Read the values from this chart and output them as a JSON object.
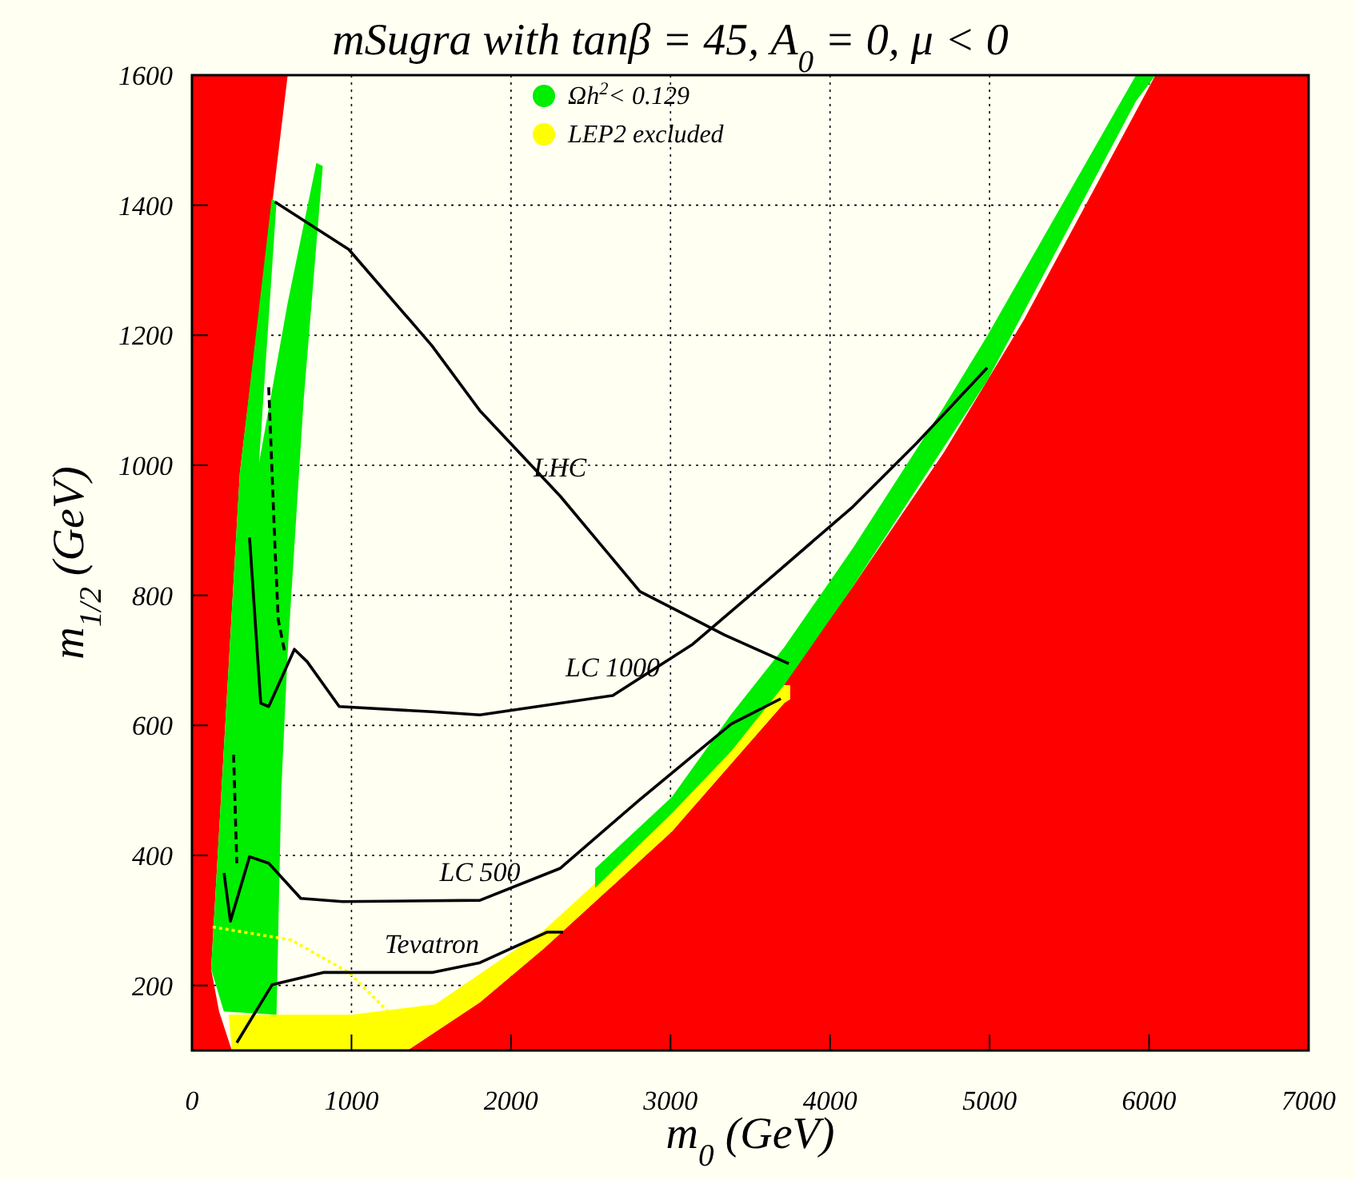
{
  "chart_data": {
    "type": "area",
    "title": "mSugra with tanβ = 45, A$_{0}$ = 0, μ < 0",
    "xlabel": "m$_{0}$ (GeV)",
    "ylabel": "m$_{1/2}$ (GeV)",
    "xlim": [
      0,
      7000
    ],
    "ylim": [
      100,
      1600
    ],
    "xticks": [
      0,
      1000,
      2000,
      3000,
      4000,
      5000,
      6000,
      7000
    ],
    "yticks": [
      200,
      400,
      600,
      800,
      1000,
      1200,
      1400,
      1600
    ],
    "grid": true,
    "legend": "top",
    "series": [
      {
        "color": "#ff0000",
        "x": [
          0,
          0,
          600,
          300,
          120,
          170,
          250
        ],
        "values": [
          100,
          1600,
          1600,
          988,
          225,
          160,
          100
        ]
      },
      {
        "color": "#ff0000",
        "x": [
          1350,
          1805,
          2207,
          3009,
          3711,
          3712,
          4142,
          4714,
          5216,
          6040,
          7000,
          7000
        ],
        "values": [
          100,
          174,
          257,
          437,
          634,
          666,
          813,
          1020,
          1224,
          1600,
          1600,
          100
        ]
      },
      {
        "name": "LEP2 excluded",
        "color": "#ffff00",
        "x": [
          230,
          1000,
          1525,
          2207,
          3009,
          3711,
          3750,
          3750,
          3711,
          3009,
          2207,
          1805,
          1350,
          250,
          230
        ],
        "values": [
          155,
          155,
          171,
          285,
          465,
          662,
          662,
          640,
          634,
          437,
          257,
          174,
          100,
          100,
          155
        ]
      },
      {
        "name": "Ωh$^{2}$< 0.129",
        "color": "#00ee00",
        "x": [
          120,
          200,
          530,
          560,
          600,
          700,
          820,
          780,
          600,
          420,
          530,
          500,
          300,
          120,
          2250,
          2527,
          2528,
          3009,
          3380,
          3712,
          4142,
          4714,
          4985,
          5918,
          6040,
          5918,
          4985,
          4142,
          3712,
          3380,
          3009,
          2527,
          2250
        ],
        "values": [
          225,
          160,
          155,
          500,
          712,
          1100,
          1460,
          1465,
          1250,
          1003,
          1405,
          1410,
          988,
          225,
          293,
          350,
          380,
          490,
          617,
          720,
          872,
          1090,
          1199,
          1600,
          1600,
          1560,
          1130,
          813,
          662,
          560,
          465,
          350,
          293
        ]
      },
      {
        "type": "line",
        "color": "#ffff00",
        "line_style": "dotted",
        "x": [
          130,
          622,
          983,
          1224
        ],
        "values": [
          290,
          270,
          220,
          161
        ]
      },
      {
        "type": "line",
        "name": "LHC",
        "color": "#000000",
        "x": [
          520,
          983,
          1504,
          1805,
          2307,
          2808,
          3340,
          3741
        ],
        "values": [
          1405,
          1332,
          1184,
          1084,
          953,
          806,
          739,
          695
        ]
      },
      {
        "type": "line",
        "name": "LC 1000",
        "color": "#000000",
        "x": [
          361,
          431,
          481,
          642,
          722,
          923,
          1504,
          1805,
          2638,
          3140,
          3641,
          4142,
          4543,
          4985
        ],
        "values": [
          889,
          634,
          629,
          717,
          698,
          629,
          621,
          616,
          646,
          725,
          830,
          936,
          1034,
          1150
        ]
      },
      {
        "type": "line",
        "name": "LC 500",
        "color": "#000000",
        "x": [
          201,
          241,
          361,
          481,
          682,
          943,
          1805,
          2307,
          2808,
          3380,
          3691
        ],
        "values": [
          373,
          299,
          398,
          388,
          334,
          329,
          331,
          380,
          486,
          602,
          641
        ]
      },
      {
        "type": "line",
        "name": "Tevatron",
        "color": "#000000",
        "x": [
          281,
          502,
          823,
          1504,
          1805,
          2227,
          2327
        ],
        "values": [
          112,
          201,
          220,
          220,
          235,
          282,
          282
        ]
      },
      {
        "type": "line",
        "color": "#000000",
        "line_style": "dashed",
        "x": [
          481,
          521,
          541,
          582
        ],
        "values": [
          1120,
          870,
          762,
          712
        ]
      },
      {
        "type": "line",
        "color": "#000000",
        "line_style": "dashed",
        "x": [
          261,
          281
        ],
        "values": [
          555,
          388
        ]
      }
    ]
  }
}
